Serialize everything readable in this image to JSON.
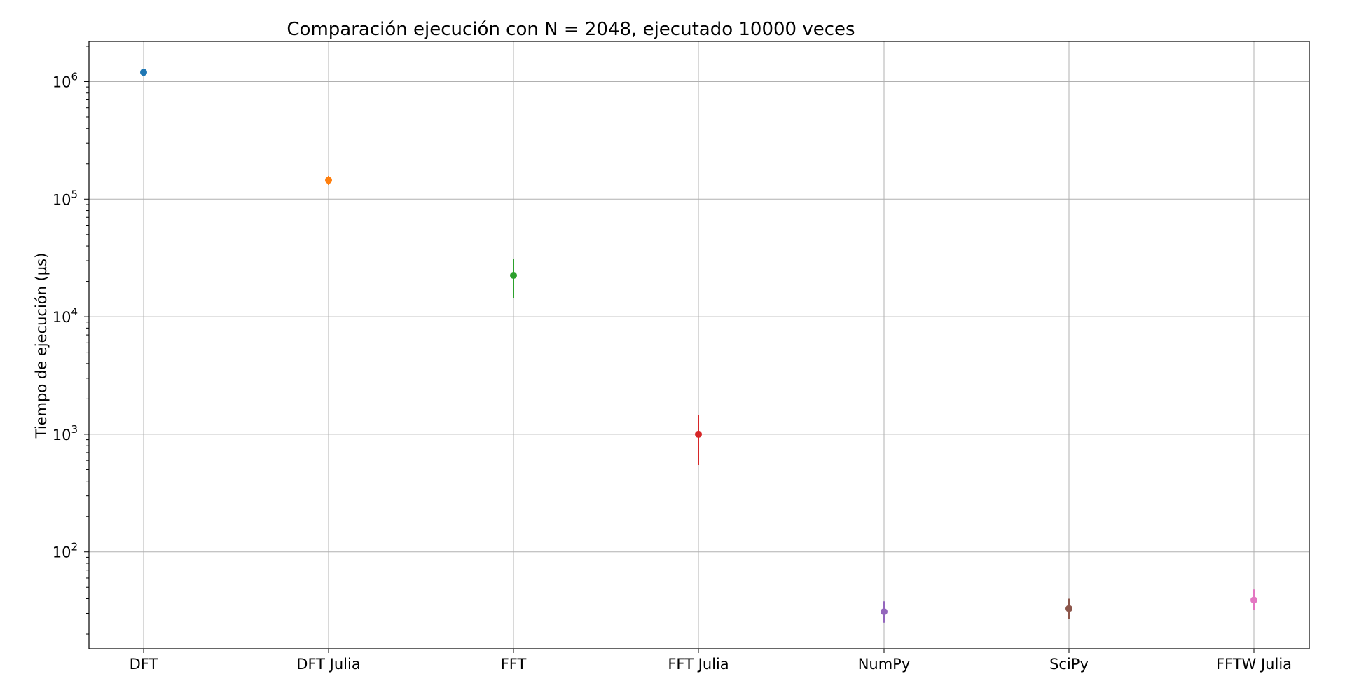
{
  "chart_data": {
    "type": "scatter",
    "title": "Comparación ejecución con N = 2048, ejecutado 10000 veces",
    "xlabel": "",
    "ylabel": "Tiempo de ejecución (µs)",
    "yscale": "log",
    "ylim": [
      15,
      2200000
    ],
    "grid": true,
    "legend": "none",
    "categories": [
      "DFT",
      "DFT Julia",
      "FFT",
      "FFT Julia",
      "NumPy",
      "SciPy",
      "FFTW Julia"
    ],
    "y_ticks": [
      {
        "value": 100,
        "base": "10",
        "exp": "2"
      },
      {
        "value": 1000,
        "base": "10",
        "exp": "3"
      },
      {
        "value": 10000,
        "base": "10",
        "exp": "4"
      },
      {
        "value": 100000,
        "base": "10",
        "exp": "5"
      },
      {
        "value": 1000000,
        "base": "10",
        "exp": "6"
      }
    ],
    "points": [
      {
        "category": "DFT",
        "value": 1200000,
        "err_low": 1160000,
        "err_high": 1240000,
        "color": "#1f77b4"
      },
      {
        "category": "DFT Julia",
        "value": 145000,
        "err_low": 132000,
        "err_high": 158000,
        "color": "#ff7f0e"
      },
      {
        "category": "FFT",
        "value": 22500,
        "err_low": 14500,
        "err_high": 31000,
        "color": "#2ca02c"
      },
      {
        "category": "FFT Julia",
        "value": 1000,
        "err_low": 550,
        "err_high": 1450,
        "color": "#d62728"
      },
      {
        "category": "NumPy",
        "value": 31,
        "err_low": 25,
        "err_high": 38,
        "color": "#9467bd"
      },
      {
        "category": "SciPy",
        "value": 33,
        "err_low": 27,
        "err_high": 40,
        "color": "#8c564b"
      },
      {
        "category": "FFTW Julia",
        "value": 39,
        "err_low": 32,
        "err_high": 48,
        "color": "#e377c2"
      }
    ]
  }
}
